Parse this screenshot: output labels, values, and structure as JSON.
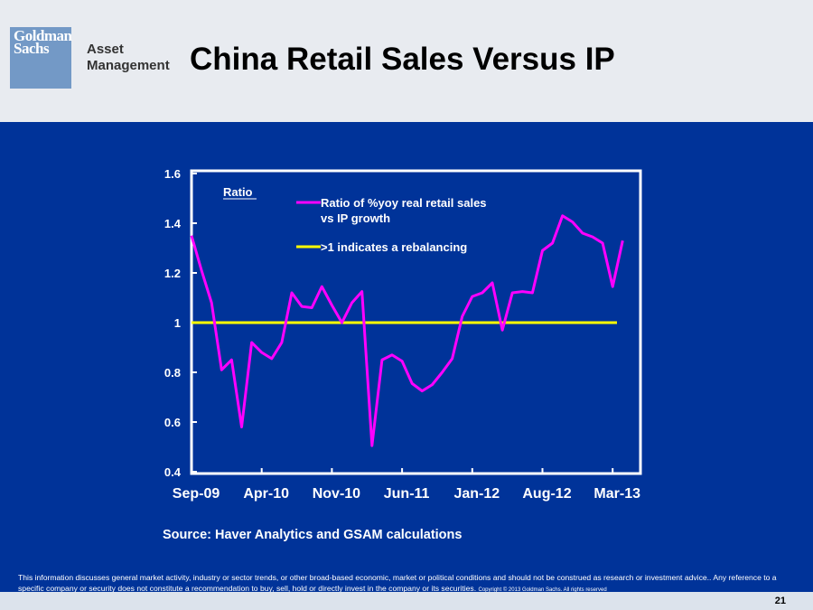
{
  "header": {
    "logo_brand": "Goldman Sachs",
    "logo_line1": "Goldman",
    "logo_line2": "Sachs",
    "logo_sub_line1": "Asset",
    "logo_sub_line2": "Management",
    "title": "China Retail Sales Versus IP"
  },
  "colors": {
    "background": "#003399",
    "series": "#ff00ff",
    "threshold": "#ffff00",
    "header_bg": "#e8ebf0",
    "logo": "#7399c6"
  },
  "chart_data": {
    "type": "line",
    "title": "China Retail Sales Versus IP",
    "ylabel": "Ratio",
    "xlabel": "",
    "ylim": [
      0.4,
      1.6
    ],
    "yticks": [
      "0.4",
      "0.6",
      "0.8",
      "1",
      "1.2",
      "1.4",
      "1.6"
    ],
    "ytick_values": [
      0.4,
      0.6,
      0.8,
      1.0,
      1.2,
      1.4,
      1.6
    ],
    "xtick_labels": [
      "Sep-09",
      "Apr-10",
      "Nov-10",
      "Jun-11",
      "Jan-12",
      "Aug-12",
      "Mar-13"
    ],
    "xtick_index": [
      0,
      7,
      14,
      21,
      28,
      35,
      42
    ],
    "grid": false,
    "legend_placement": "top-center",
    "series": [
      {
        "name": "Ratio of %yoy real retail sales vs IP growth",
        "legend_line1": "Ratio of %yoy real retail sales",
        "legend_line2": "vs IP growth",
        "values": [
          1.35,
          1.21,
          1.08,
          0.81,
          0.85,
          0.58,
          0.92,
          0.88,
          0.855,
          0.92,
          1.12,
          1.065,
          1.06,
          1.145,
          1.07,
          1.0,
          1.08,
          1.125,
          0.505,
          0.85,
          0.87,
          0.845,
          0.755,
          0.725,
          0.75,
          0.8,
          0.855,
          1.025,
          1.105,
          1.12,
          1.16,
          0.97,
          1.12,
          1.125,
          1.12,
          1.29,
          1.32,
          1.43,
          1.405,
          1.36,
          1.345,
          1.32,
          1.145,
          1.33
        ]
      },
      {
        "name": ">1 indicates a rebalancing",
        "values": [
          1.0,
          1.0
        ]
      }
    ]
  },
  "source": "Source: Haver Analytics and GSAM calculations",
  "disclaimer": "This information discusses general market activity, industry or sector trends, or other broad-based economic, market or political conditions and should not be construed as research or investment advice.. Any reference to a specific company or security does not constitute a recommendation to buy, sell, hold or directly invest in the company or its securities.",
  "copyright": "Copyright © 2013 Goldman Sachs. All rights reserved",
  "page_number": "21"
}
